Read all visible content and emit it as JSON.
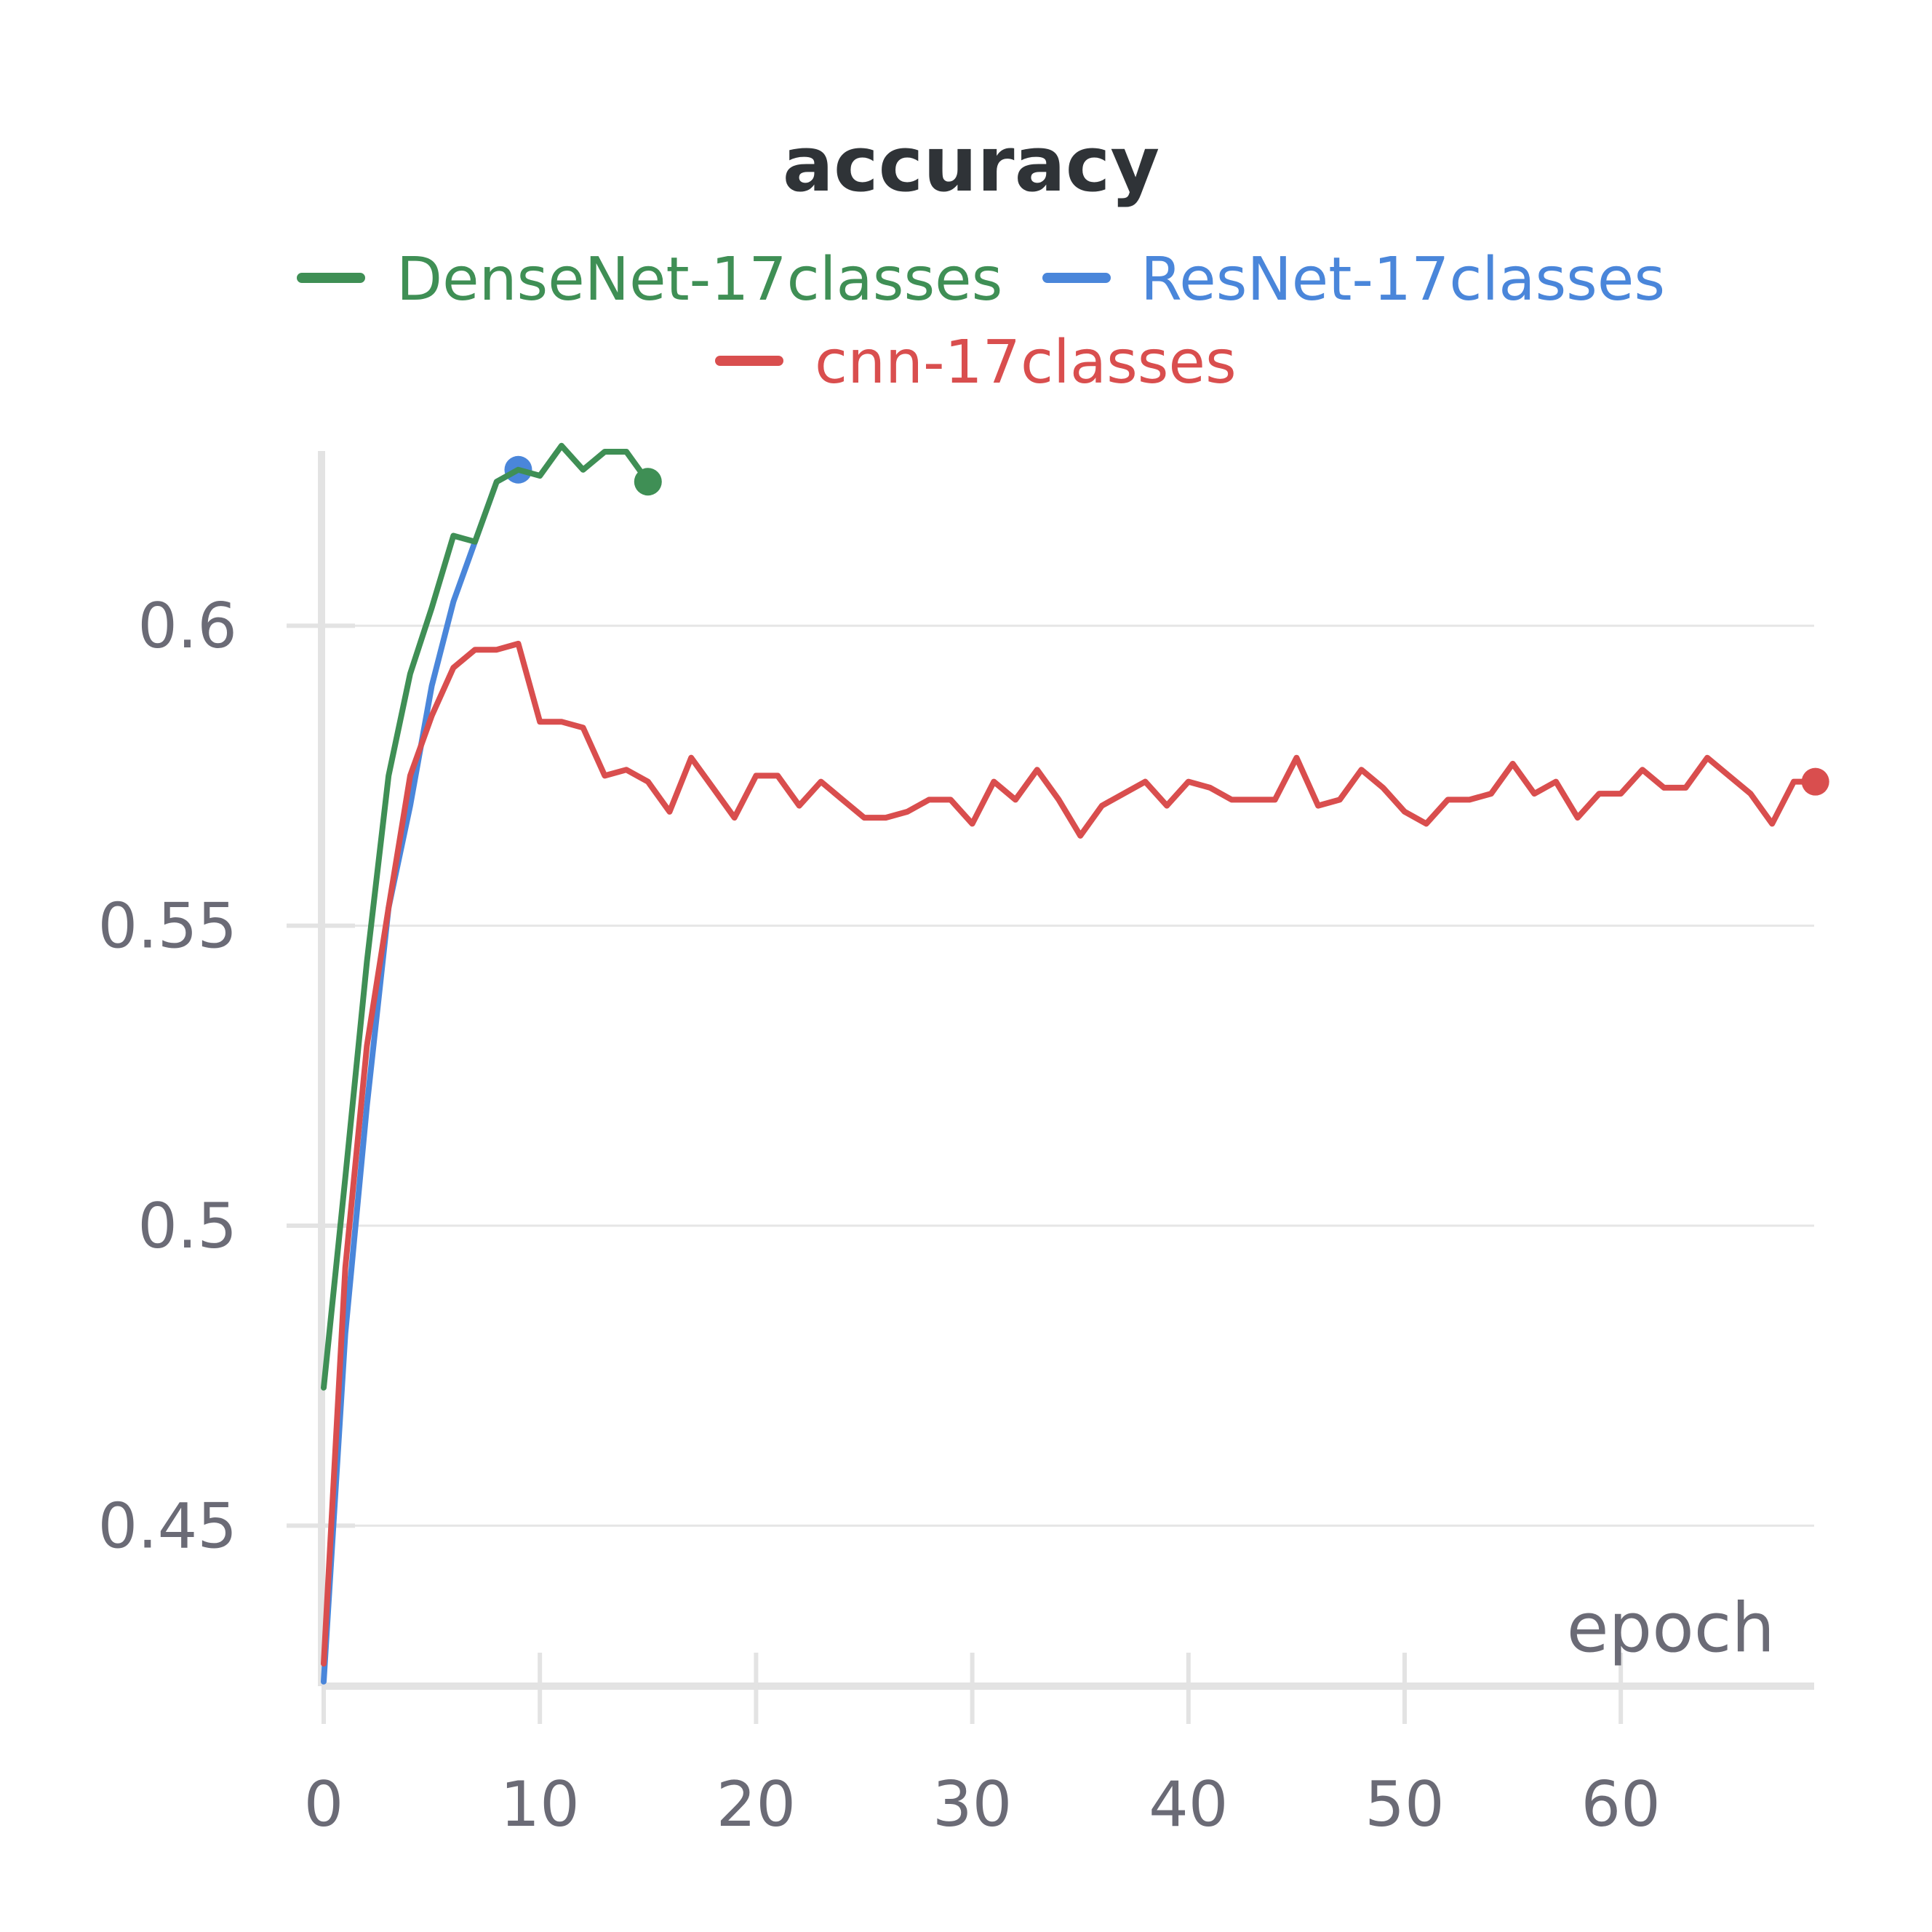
{
  "chart_data": {
    "type": "line",
    "title": "accuracy",
    "xlabel": "epoch",
    "ylabel": "",
    "xlim": [
      0,
      69
    ],
    "ylim": [
      0.422,
      0.628
    ],
    "x_ticks": [
      0,
      10,
      20,
      30,
      40,
      50,
      60
    ],
    "y_ticks": [
      0.45,
      0.5,
      0.55,
      0.6
    ],
    "x_tick_labels": [
      "0",
      "10",
      "20",
      "30",
      "40",
      "50",
      "60"
    ],
    "y_tick_labels": [
      "0.45",
      "0.5",
      "0.55",
      "0.6"
    ],
    "grid": true,
    "legend_position": "top",
    "series": [
      {
        "name": "DenseNet-17classes",
        "color": "#3f8f55",
        "x": [
          0,
          1,
          2,
          3,
          4,
          5,
          6,
          7,
          8,
          9,
          10,
          11,
          12,
          13,
          14,
          15
        ],
        "y": [
          0.473,
          0.508,
          0.544,
          0.575,
          0.592,
          0.603,
          0.615,
          0.614,
          0.624,
          0.626,
          0.625,
          0.63,
          0.626,
          0.629,
          0.629,
          0.624
        ]
      },
      {
        "name": "ResNet-17classes",
        "color": "#4a86da",
        "x": [
          0,
          1,
          2,
          3,
          4,
          5,
          6,
          7,
          8,
          9
        ],
        "y": [
          0.424,
          0.482,
          0.52,
          0.553,
          0.57,
          0.59,
          0.604,
          0.614,
          0.624,
          0.626
        ]
      },
      {
        "name": "cnn-17classes",
        "color": "#d94e4e",
        "x": [
          0,
          1,
          2,
          3,
          4,
          5,
          6,
          7,
          8,
          9,
          10,
          11,
          12,
          13,
          14,
          15,
          16,
          17,
          18,
          19,
          20,
          21,
          22,
          23,
          24,
          25,
          26,
          27,
          28,
          29,
          30,
          31,
          32,
          33,
          34,
          35,
          36,
          37,
          38,
          39,
          40,
          41,
          42,
          43,
          44,
          45,
          46,
          47,
          48,
          49,
          50,
          51,
          52,
          53,
          54,
          55,
          56,
          57,
          58,
          59,
          60,
          61,
          62,
          63,
          64,
          65,
          66,
          67,
          68,
          69
        ],
        "y": [
          0.427,
          0.493,
          0.53,
          0.553,
          0.575,
          0.585,
          0.593,
          0.596,
          0.596,
          0.597,
          0.584,
          0.584,
          0.583,
          0.575,
          0.576,
          0.574,
          0.569,
          0.578,
          0.573,
          0.568,
          0.575,
          0.575,
          0.57,
          0.574,
          0.571,
          0.568,
          0.568,
          0.569,
          0.571,
          0.571,
          0.567,
          0.574,
          0.571,
          0.576,
          0.571,
          0.565,
          0.57,
          0.572,
          0.574,
          0.57,
          0.574,
          0.573,
          0.571,
          0.571,
          0.571,
          0.578,
          0.57,
          0.571,
          0.576,
          0.573,
          0.569,
          0.567,
          0.571,
          0.571,
          0.572,
          0.577,
          0.572,
          0.574,
          0.568,
          0.572,
          0.572,
          0.576,
          0.573,
          0.573,
          0.578,
          0.575,
          0.572,
          0.567,
          0.574,
          0.574
        ]
      }
    ]
  }
}
